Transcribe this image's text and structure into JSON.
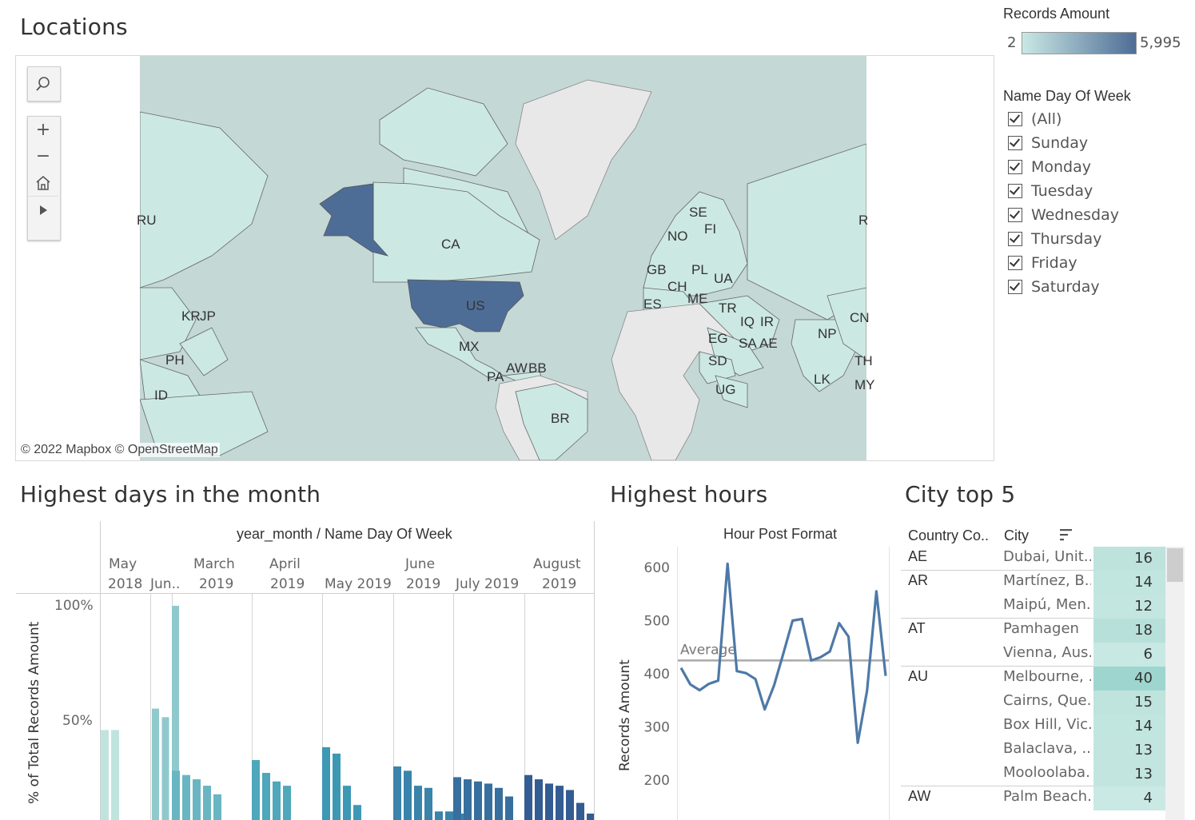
{
  "locations": {
    "title": "Locations",
    "attribution": "© 2022 Mapbox  © OpenStreetMap",
    "country_labels": [
      {
        "code": "RU"
      },
      {
        "code": "CA"
      },
      {
        "code": "US"
      },
      {
        "code": "MX"
      },
      {
        "code": "KR"
      },
      {
        "code": "JP"
      },
      {
        "code": "PH"
      },
      {
        "code": "ID"
      },
      {
        "code": "PA"
      },
      {
        "code": "AW"
      },
      {
        "code": "BB"
      },
      {
        "code": "BR"
      },
      {
        "code": "SE"
      },
      {
        "code": "FI"
      },
      {
        "code": "NO"
      },
      {
        "code": "GB"
      },
      {
        "code": "PL"
      },
      {
        "code": "CH"
      },
      {
        "code": "UA"
      },
      {
        "code": "ES"
      },
      {
        "code": "ME"
      },
      {
        "code": "TR"
      },
      {
        "code": "IQ"
      },
      {
        "code": "IR"
      },
      {
        "code": "EG"
      },
      {
        "code": "SA"
      },
      {
        "code": "AE"
      },
      {
        "code": "SD"
      },
      {
        "code": "UG"
      },
      {
        "code": "NP"
      },
      {
        "code": "LK"
      },
      {
        "code": "CN"
      },
      {
        "code": "TH"
      },
      {
        "code": "MY"
      },
      {
        "code": "R"
      }
    ],
    "controls": {
      "search_icon": "search-icon",
      "zoom_in": "+",
      "zoom_out": "−",
      "home_icon": "home-icon",
      "play_icon": "play-icon"
    }
  },
  "legend": {
    "title": "Records Amount",
    "min": "2",
    "max": "5,995",
    "color_low": "#c9e8e4",
    "color_high": "#4e6d96"
  },
  "filter": {
    "title": "Name Day Of Week",
    "items": [
      {
        "label": "(All)",
        "checked": true
      },
      {
        "label": "Sunday",
        "checked": true
      },
      {
        "label": "Monday",
        "checked": true
      },
      {
        "label": "Tuesday",
        "checked": true
      },
      {
        "label": "Wednesday",
        "checked": true
      },
      {
        "label": "Thursday",
        "checked": true
      },
      {
        "label": "Friday",
        "checked": true
      },
      {
        "label": "Saturday",
        "checked": true
      }
    ]
  },
  "highest_days": {
    "title": "Highest days in the month",
    "header": "year_month / Name Day Of Week",
    "month_columns": [
      {
        "line1": "May",
        "line2": "2018"
      },
      {
        "line1": "",
        "line2": "Jun.."
      },
      {
        "line1": "March",
        "line2": "2019"
      },
      {
        "line1": "April",
        "line2": "2019"
      },
      {
        "line1": "",
        "line2": "May 2019"
      },
      {
        "line1": "June",
        "line2": "2019"
      },
      {
        "line1": "",
        "line2": "July 2019"
      },
      {
        "line1": "August",
        "line2": "2019"
      }
    ],
    "ylabel": "% of Total Records Amount",
    "yticks": [
      "100%",
      "50%"
    ]
  },
  "highest_hours": {
    "title": "Highest hours",
    "header": "Hour Post Format",
    "ylabel": "Records Amount",
    "reference_label": "Average"
  },
  "city_top5": {
    "title": "City top 5",
    "col_country": "Country Co..",
    "col_city": "City",
    "sort_icon": "sort-icon",
    "rows": [
      {
        "country": "AE",
        "city": "Dubai, Unit..",
        "value": "16"
      },
      {
        "country": "AR",
        "city": "Martínez, B..",
        "value": "14"
      },
      {
        "country": "",
        "city": "Maipú, Men..",
        "value": "12"
      },
      {
        "country": "AT",
        "city": "Pamhagen",
        "value": "18"
      },
      {
        "country": "",
        "city": "Vienna, Aus..",
        "value": "6"
      },
      {
        "country": "AU",
        "city": "Melbourne, ..",
        "value": "40"
      },
      {
        "country": "",
        "city": "Cairns, Que..",
        "value": "15"
      },
      {
        "country": "",
        "city": "Box Hill, Vic..",
        "value": "14"
      },
      {
        "country": "",
        "city": "Balaclava, ..",
        "value": "13"
      },
      {
        "country": "",
        "city": "Mooloolaba..",
        "value": "13"
      },
      {
        "country": "AW",
        "city": "Palm Beach..",
        "value": "4"
      }
    ]
  },
  "chart_data": [
    {
      "type": "bar",
      "title": "Highest days in the month",
      "xlabel": "year_month / Name Day Of Week",
      "ylabel": "% of Total Records Amount",
      "ylim": [
        0,
        100
      ],
      "yticks": [
        50,
        100
      ],
      "groups": [
        {
          "month": "May 2018",
          "values": [
            42,
            42
          ],
          "color": "#bfe4de"
        },
        {
          "month": "Jun..",
          "values": [
            52,
            48,
            100
          ],
          "color": "#8fc9cc"
        },
        {
          "month": "March 2019",
          "values": [
            23,
            21,
            19,
            16,
            12
          ],
          "color": "#6ab5c2"
        },
        {
          "month": "April 2019",
          "values": [
            28,
            22,
            18,
            16
          ],
          "color": "#4ea7bb"
        },
        {
          "month": "May 2019",
          "values": [
            34,
            31,
            16,
            7
          ],
          "color": "#3d98b4"
        },
        {
          "month": "June 2019",
          "values": [
            25,
            23,
            16,
            15,
            4,
            4,
            3
          ],
          "color": "#3a83ab"
        },
        {
          "month": "July 2019",
          "values": [
            20,
            19,
            18,
            17,
            15,
            11
          ],
          "color": "#376f9f"
        },
        {
          "month": "August 2019",
          "values": [
            21,
            19,
            17,
            16,
            14,
            8,
            3
          ],
          "color": "#335c92"
        }
      ]
    },
    {
      "type": "line",
      "title": "Hour Post Format",
      "ylabel": "Records Amount",
      "ylim": [
        160,
        640
      ],
      "yticks": [
        200,
        300,
        400,
        500,
        600
      ],
      "average": 425,
      "series": [
        {
          "values": [
            411,
            380,
            369,
            381,
            387,
            607,
            405,
            401,
            390,
            333,
            378,
            438,
            500,
            503,
            425,
            431,
            442,
            495,
            470,
            270,
            368,
            555,
            396
          ],
          "color": "#4e79a7"
        }
      ]
    }
  ]
}
